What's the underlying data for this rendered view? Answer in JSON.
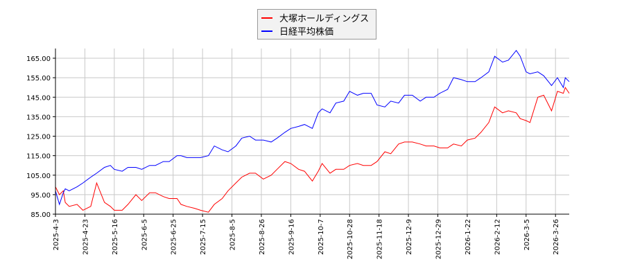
{
  "chart_data": {
    "type": "line",
    "title": "",
    "xlabel": "",
    "ylabel": "",
    "ylim": [
      85,
      170
    ],
    "xlim": [
      0,
      262
    ],
    "grid": true,
    "legend_position": "top-center",
    "yticks": [
      85,
      95,
      105,
      115,
      125,
      135,
      145,
      155,
      165
    ],
    "ytick_labels": [
      "85.00",
      "95.00",
      "105.00",
      "115.00",
      "125.00",
      "135.00",
      "145.00",
      "155.00",
      "165.00"
    ],
    "xticks": [
      0,
      15,
      30,
      45,
      60,
      75,
      90,
      105,
      120,
      135,
      150,
      165,
      180,
      195,
      210,
      225,
      240,
      255
    ],
    "xtick_labels": [
      "2025-4-3",
      "2025-4-23",
      "2025-5-16",
      "2025-6-5",
      "2025-6-25",
      "2025-7-15",
      "2025-8-5",
      "2025-8-26",
      "2025-9-16",
      "2025-10-7",
      "2025-10-28",
      "2025-11-18",
      "2025-12-9",
      "2025-12-29",
      "2026-1-22",
      "2026-2-12",
      "2026-3-5",
      "2026-3-26"
    ],
    "x": [
      0,
      2,
      4,
      5,
      7,
      11,
      14,
      18,
      21,
      25,
      28,
      30,
      34,
      37,
      41,
      44,
      48,
      51,
      55,
      58,
      62,
      64,
      67,
      71,
      74,
      78,
      81,
      85,
      88,
      92,
      95,
      99,
      102,
      106,
      110,
      113,
      117,
      120,
      124,
      127,
      131,
      134,
      136,
      140,
      143,
      147,
      150,
      154,
      157,
      161,
      164,
      168,
      171,
      175,
      178,
      182,
      186,
      189,
      193,
      196,
      200,
      203,
      207,
      210,
      214,
      217,
      221,
      224,
      228,
      231,
      235,
      237,
      240,
      242,
      246,
      249,
      253,
      256,
      259,
      260,
      262
    ],
    "series": [
      {
        "name": "大塚ホールディングス",
        "color": "#ff0000",
        "values": [
          99,
          95,
          97,
          91,
          89,
          90,
          87,
          89,
          101,
          91,
          89,
          87,
          87,
          90,
          95,
          92,
          96,
          96,
          94,
          93,
          93,
          90,
          89,
          88,
          87,
          86,
          90,
          93,
          97,
          101,
          104,
          106,
          106,
          103,
          105,
          108,
          112,
          111,
          108,
          107,
          102,
          107,
          111,
          106,
          108,
          108,
          110,
          111,
          110,
          110,
          112,
          117,
          116,
          121,
          122,
          122,
          121,
          120,
          120,
          119,
          119,
          121,
          120,
          123,
          124,
          127,
          132,
          140,
          137,
          138,
          137,
          134,
          133,
          132,
          145,
          146,
          138,
          148,
          147,
          150,
          147
        ]
      },
      {
        "name": "日経平均株価",
        "color": "#0000ff",
        "values": [
          97,
          90,
          96,
          98,
          97,
          99,
          101,
          104,
          106,
          109,
          110,
          108,
          107,
          109,
          109,
          108,
          110,
          110,
          112,
          112,
          115,
          115,
          114,
          114,
          114,
          115,
          120,
          118,
          117,
          120,
          124,
          125,
          123,
          123,
          122,
          124,
          127,
          129,
          130,
          131,
          129,
          137,
          139,
          137,
          142,
          143,
          148,
          146,
          147,
          147,
          141,
          140,
          143,
          142,
          146,
          146,
          143,
          145,
          145,
          147,
          149,
          155,
          154,
          153,
          153,
          155,
          158,
          166,
          163,
          164,
          169,
          166,
          158,
          157,
          158,
          156,
          151,
          155,
          150,
          155,
          153
        ]
      }
    ]
  }
}
